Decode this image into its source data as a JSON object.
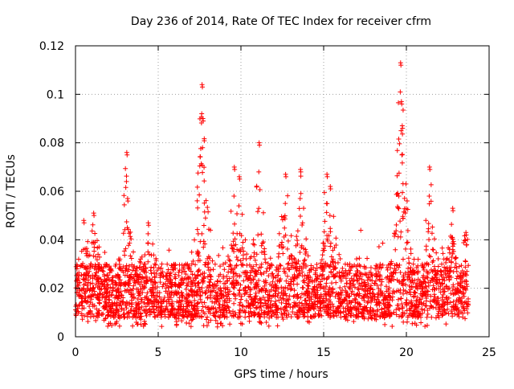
{
  "chart_data": {
    "type": "scatter",
    "title": "Day 236 of 2014, Rate Of TEC Index for receiver cfrm",
    "xlabel": "GPS time / hours",
    "ylabel": "ROTI / TECUs",
    "xlim": [
      0,
      25
    ],
    "ylim": [
      0,
      0.12
    ],
    "x_ticks": [
      0,
      5,
      10,
      15,
      20,
      25
    ],
    "x_tick_labels": [
      "0",
      "5",
      "10",
      "15",
      "20",
      "25"
    ],
    "y_ticks": [
      0,
      0.02,
      0.04,
      0.06,
      0.08,
      0.1,
      0.12
    ],
    "y_tick_labels": [
      "0",
      "0.02",
      "0.04",
      "0.06",
      "0.08",
      "0.1",
      "0.12"
    ],
    "grid": true,
    "marker": "+",
    "series": [
      {
        "name": "ROTI",
        "color": "#ff0000",
        "x_range": [
          0,
          23.75
        ],
        "typical_band": [
          0.008,
          0.03
        ],
        "peaks": [
          {
            "x": 0.5,
            "y": 0.048
          },
          {
            "x": 1.1,
            "y": 0.051
          },
          {
            "x": 3.1,
            "y": 0.076
          },
          {
            "x": 3.15,
            "y": 0.057
          },
          {
            "x": 4.4,
            "y": 0.047
          },
          {
            "x": 7.65,
            "y": 0.104
          },
          {
            "x": 7.7,
            "y": 0.09
          },
          {
            "x": 9.6,
            "y": 0.07
          },
          {
            "x": 9.9,
            "y": 0.066
          },
          {
            "x": 11.1,
            "y": 0.08
          },
          {
            "x": 12.7,
            "y": 0.067
          },
          {
            "x": 13.6,
            "y": 0.069
          },
          {
            "x": 15.2,
            "y": 0.067
          },
          {
            "x": 15.4,
            "y": 0.062
          },
          {
            "x": 19.65,
            "y": 0.113
          },
          {
            "x": 19.7,
            "y": 0.097
          },
          {
            "x": 19.75,
            "y": 0.087
          },
          {
            "x": 21.4,
            "y": 0.07
          },
          {
            "x": 22.8,
            "y": 0.053
          },
          {
            "x": 23.6,
            "y": 0.043
          }
        ]
      }
    ]
  }
}
